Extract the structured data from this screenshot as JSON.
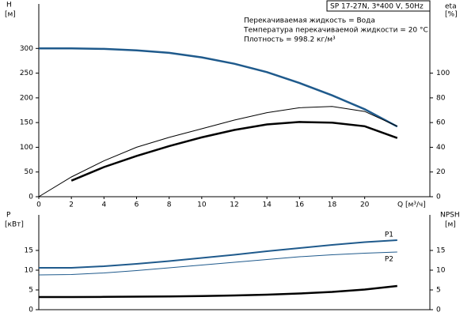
{
  "chart_data": [
    {
      "type": "line",
      "title": "SP 17-27N, 3*400 V, 50Hz",
      "annotations": [
        "Перекачиваемая жидкость = Вода",
        "Температура перекачиваемой жидкости = 20 °C",
        "Плотность = 998.2 кг/м³"
      ],
      "ylabel": "H",
      "yunit": "[м]",
      "y2label": "eta",
      "y2unit": "[%]",
      "xlabel": "Q [м³/ч]",
      "x": [
        0,
        2,
        4,
        6,
        8,
        10,
        12,
        14,
        16,
        18,
        20,
        22
      ],
      "xlim": [
        0,
        24
      ],
      "xticks": [
        0,
        2,
        4,
        6,
        8,
        10,
        12,
        14,
        16,
        18,
        20
      ],
      "ylim": [
        0,
        390
      ],
      "yticks": [
        0,
        50,
        100,
        150,
        200,
        250,
        300
      ],
      "y2lim": [
        0,
        156
      ],
      "y2ticks": [
        0,
        20,
        40,
        60,
        80,
        100
      ],
      "series": [
        {
          "color": "#1f5a8c",
          "linewidth": 2.5,
          "values": [
            300,
            300,
            299,
            296,
            291,
            282,
            269,
            252,
            230,
            205,
            177,
            142
          ]
        },
        {
          "color": "#000000",
          "linewidth": 1,
          "axis": "y2",
          "values": [
            0,
            16,
            29,
            40,
            48,
            55,
            62,
            68,
            72,
            73,
            69,
            57
          ]
        },
        {
          "color": "#000000",
          "linewidth": 2.5,
          "axis": "y2",
          "values": [
            null,
            13,
            24,
            33,
            41,
            48,
            54,
            58.5,
            60.5,
            60,
            57,
            47.5
          ]
        }
      ]
    },
    {
      "type": "line",
      "ylabel": "P",
      "yunit": "[кВт]",
      "y2label": "NPSH",
      "y2unit": "[м]",
      "x": [
        0,
        2,
        4,
        6,
        8,
        10,
        12,
        14,
        16,
        18,
        20,
        22
      ],
      "xlim": [
        0,
        24
      ],
      "ylim": [
        0,
        24
      ],
      "yticks": [
        0,
        5,
        10,
        15
      ],
      "y2lim": [
        0,
        24
      ],
      "y2ticks": [
        0,
        5,
        10,
        15
      ],
      "series": [
        {
          "name": "P1",
          "color": "#1f5a8c",
          "linewidth": 2,
          "values": [
            10.6,
            10.6,
            11.0,
            11.6,
            12.3,
            13.1,
            13.9,
            14.8,
            15.6,
            16.4,
            17.1,
            17.6
          ]
        },
        {
          "name": "P2",
          "color": "#1f5a8c",
          "linewidth": 1,
          "values": [
            8.8,
            8.9,
            9.3,
            9.9,
            10.6,
            11.3,
            12.0,
            12.7,
            13.4,
            13.9,
            14.3,
            14.6
          ]
        },
        {
          "color": "#000000",
          "linewidth": 2.5,
          "axis": "y2",
          "values": [
            3.2,
            3.2,
            3.25,
            3.3,
            3.35,
            3.45,
            3.6,
            3.8,
            4.1,
            4.5,
            5.1,
            6.0
          ]
        }
      ]
    }
  ]
}
